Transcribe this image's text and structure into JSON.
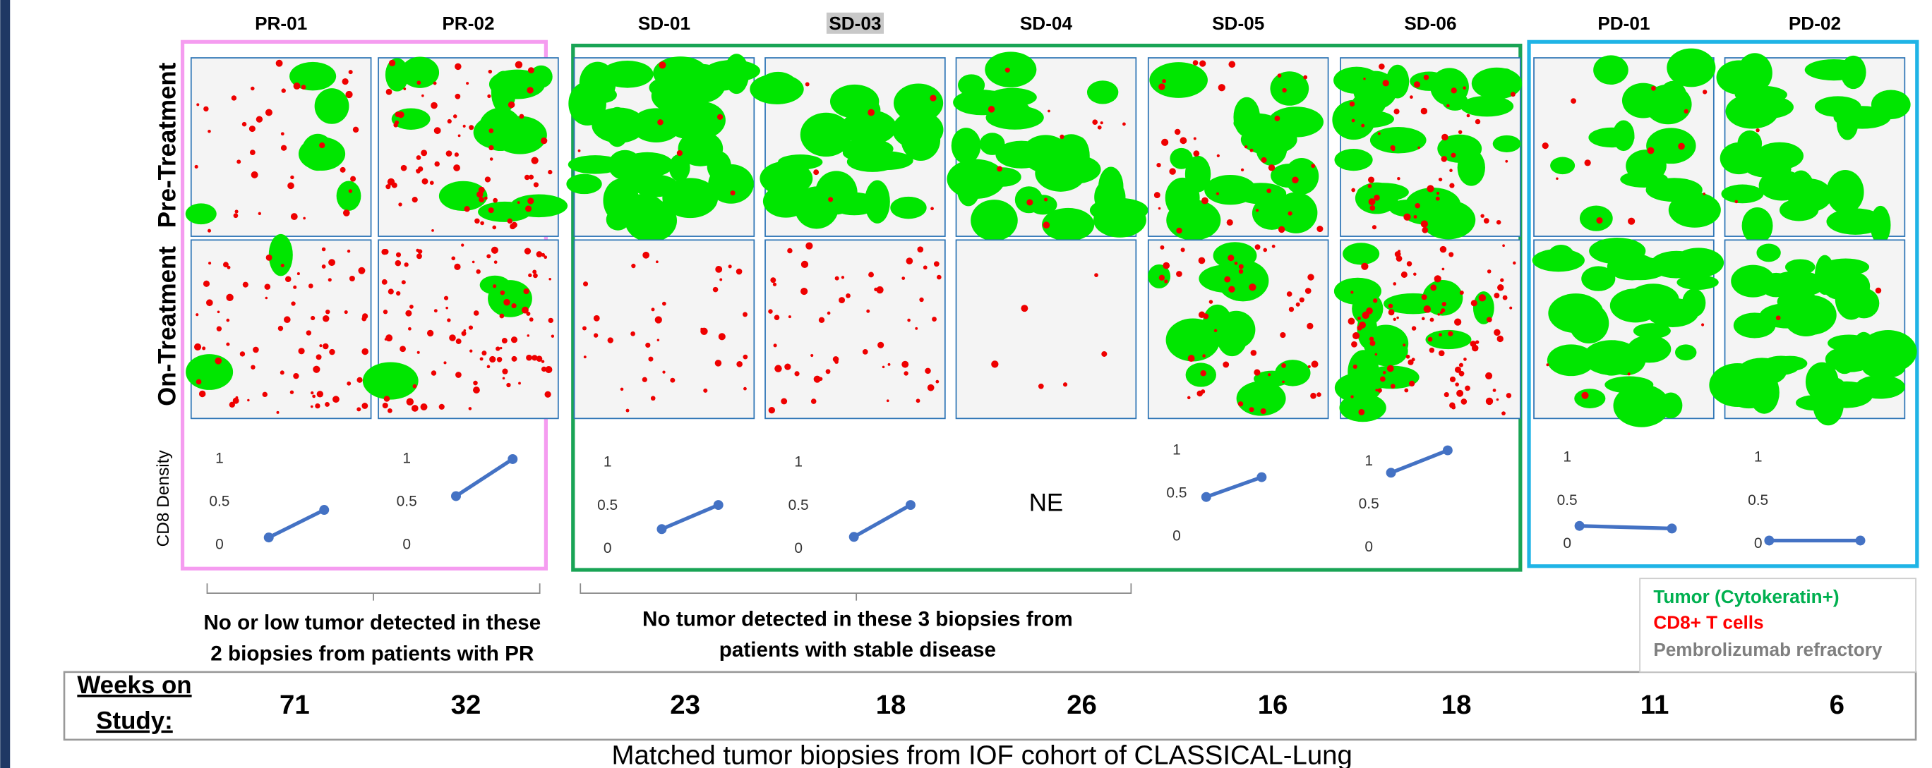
{
  "title": "Matched tumor biopsies from IOF cohort of CLASSICAL-Lung",
  "row_labels": [
    "Pre-Treatment",
    "On-Treatment"
  ],
  "density_label": "CD8 Density",
  "weeks_label": [
    "Weeks on",
    "Study:"
  ],
  "density_ylim": [
    0,
    1.2
  ],
  "density_yticks": [
    0,
    0.5,
    1
  ],
  "patients": [
    {
      "id": "PR-01",
      "weeks": 71,
      "cd8": [
        0.09,
        0.41
      ]
    },
    {
      "id": "PR-02",
      "weeks": 32,
      "cd8": [
        0.57,
        1.0
      ]
    },
    {
      "id": "SD-01",
      "weeks": 23,
      "cd8": [
        0.23,
        0.51
      ]
    },
    {
      "id": "SD-03",
      "weeks": 18,
      "cd8": [
        0.14,
        0.51
      ]
    },
    {
      "id": "SD-04",
      "weeks": 26,
      "cd8": null,
      "cd8_label": "NE"
    },
    {
      "id": "SD-05",
      "weeks": 16,
      "cd8": [
        0.46,
        0.69
      ]
    },
    {
      "id": "SD-06",
      "weeks": 18,
      "cd8": [
        0.87,
        1.13
      ]
    },
    {
      "id": "PD-01",
      "weeks": 11,
      "cd8": [
        0.21,
        0.18
      ]
    },
    {
      "id": "PD-02",
      "weeks": 6,
      "cd8": [
        0.04,
        0.04
      ]
    }
  ],
  "annotations": [
    [
      "No or low tumor detected in these",
      "2 biopsies from patients with PR"
    ],
    [
      "No tumor detected in these 3 biopsies from",
      "patients with stable disease"
    ]
  ],
  "legend": [
    "Tumor (Cytokeratin+)",
    "CD8+ T cells",
    "Pembrolizumab refractory"
  ]
}
